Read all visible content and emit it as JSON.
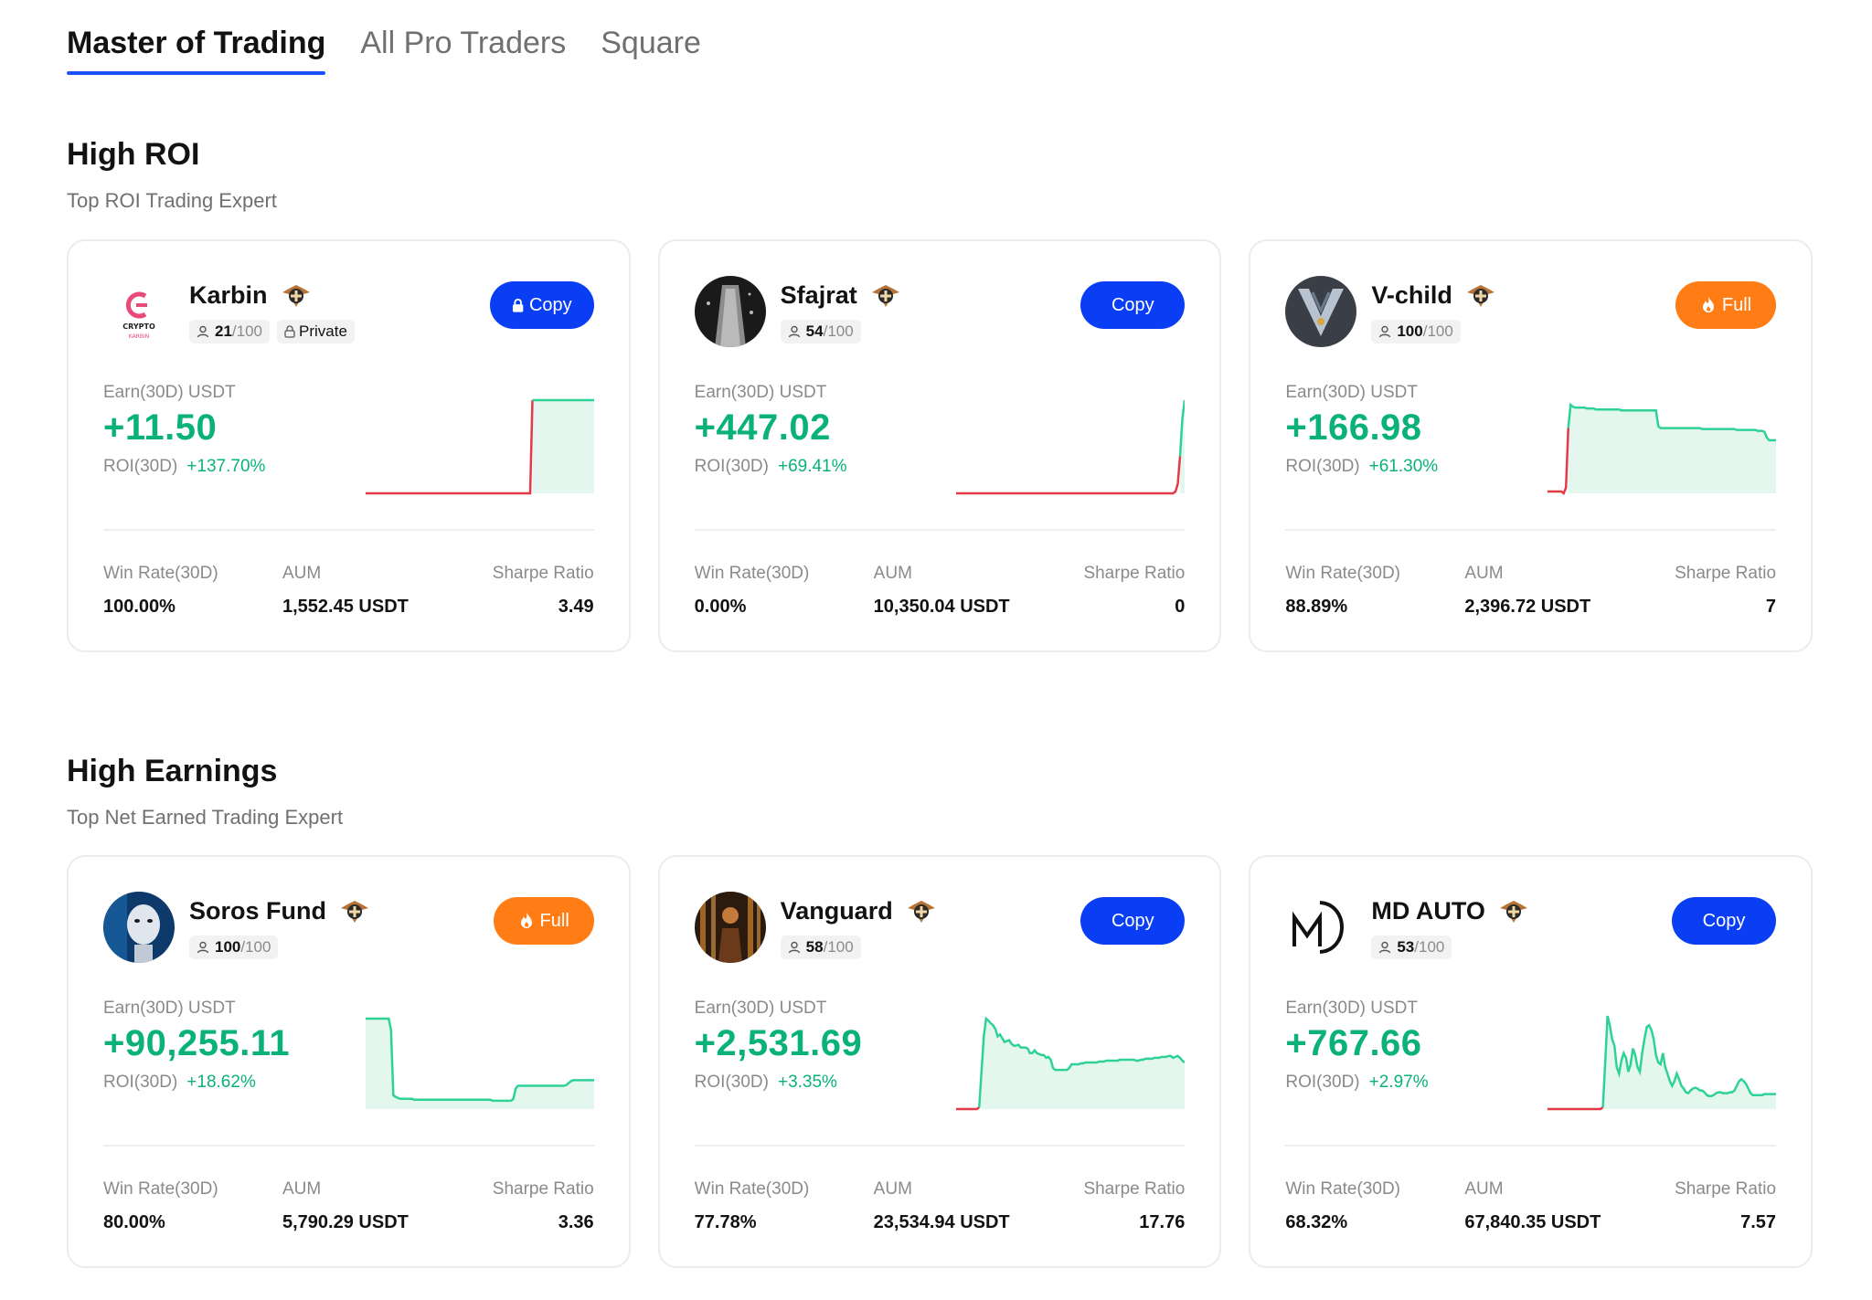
{
  "tabs": [
    {
      "label": "Master of Trading",
      "active": true
    },
    {
      "label": "All Pro Traders",
      "active": false
    },
    {
      "label": "Square",
      "active": false
    }
  ],
  "colors": {
    "accent": "#1f50ff",
    "copy_button": "#0a3ef5",
    "full_button": "#ff7d14",
    "positive": "#0ab27a",
    "negative": "#e63946"
  },
  "sections": [
    {
      "title": "High ROI",
      "subtitle": "Top ROI Trading Expert",
      "cards": [
        {
          "name": "Karbin",
          "avatar": "crypto-karbin-logo",
          "avatar_text": "CRYPTO",
          "followers": "21",
          "max_followers": "/100",
          "private_label": "Private",
          "button": {
            "type": "copy",
            "label": "Copy",
            "locked": true
          },
          "earn_label": "Earn(30D) USDT",
          "earn_value": "+11.50",
          "roi_label": "ROI(30D)",
          "roi_value": "+137.70%",
          "sparkline": [
            0,
            0,
            0,
            0,
            0,
            0,
            0,
            0,
            0,
            0,
            0,
            0,
            0,
            0,
            0,
            0,
            0,
            0,
            0,
            0,
            0,
            0,
            0,
            0,
            0,
            0,
            0,
            0,
            0,
            0,
            0,
            0,
            0,
            0,
            0,
            0,
            0,
            0,
            0,
            0,
            0,
            0,
            0,
            0,
            0,
            0,
            0,
            0,
            0,
            0,
            0,
            0,
            0,
            0,
            0,
            0,
            0,
            0,
            0,
            0,
            0,
            0,
            0,
            0,
            0,
            0,
            0,
            0,
            0,
            0,
            0,
            0,
            0,
            1,
            1,
            1,
            1,
            1,
            1,
            1,
            1,
            1,
            1,
            1,
            1,
            1,
            1,
            1,
            1,
            1,
            1,
            1,
            1,
            1,
            1,
            1,
            1,
            1,
            1,
            1,
            1
          ],
          "split_fraction": 0.73,
          "win_rate_label": "Win Rate(30D)",
          "win_rate": "100.00%",
          "aum_label": "AUM",
          "aum": "1,552.45 USDT",
          "sharpe_label": "Sharpe Ratio",
          "sharpe": "3.49"
        },
        {
          "name": "Sfajrat",
          "avatar": "sfajrat-photo",
          "followers": "54",
          "max_followers": "/100",
          "button": {
            "type": "copy",
            "label": "Copy",
            "locked": false
          },
          "earn_label": "Earn(30D) USDT",
          "earn_value": "+447.02",
          "roi_label": "ROI(30D)",
          "roi_value": "+69.41%",
          "sparkline": [
            0,
            0,
            0,
            0,
            0,
            0,
            0,
            0,
            0,
            0,
            0,
            0,
            0,
            0,
            0,
            0,
            0,
            0,
            0,
            0,
            0,
            0,
            0,
            0,
            0,
            0,
            0,
            0,
            0,
            0,
            0,
            0,
            0,
            0,
            0,
            0,
            0,
            0,
            0,
            0,
            0,
            0,
            0,
            0,
            0,
            0,
            0,
            0,
            0,
            0,
            0,
            0,
            0,
            0,
            0,
            0,
            0,
            0,
            0,
            0,
            0,
            0,
            0,
            0,
            0,
            0,
            0,
            0,
            0,
            0,
            0,
            0,
            0,
            0,
            0,
            0,
            0,
            0,
            0,
            0,
            0,
            0,
            0,
            0,
            0,
            0,
            0,
            0,
            0,
            0,
            0,
            0,
            0,
            0,
            0,
            0,
            0.02,
            0.1,
            0.4,
            0.8,
            1
          ],
          "split_fraction": 0.98,
          "win_rate_label": "Win Rate(30D)",
          "win_rate": "0.00%",
          "aum_label": "AUM",
          "aum": "10,350.04 USDT",
          "sharpe_label": "Sharpe Ratio",
          "sharpe": "0"
        },
        {
          "name": "V-child",
          "avatar": "v-child-emblem",
          "followers": "100",
          "max_followers": "/100",
          "button": {
            "type": "full",
            "label": "Full",
            "locked": false
          },
          "earn_label": "Earn(30D) USDT",
          "earn_value": "+166.98",
          "roi_label": "ROI(30D)",
          "roi_value": "+61.30%",
          "sparkline": [
            0.02,
            0.02,
            0.02,
            0.02,
            0.02,
            0.02,
            0.02,
            0.0,
            0.06,
            0.7,
            0.95,
            0.93,
            0.92,
            0.92,
            0.92,
            0.92,
            0.92,
            0.91,
            0.91,
            0.91,
            0.91,
            0.9,
            0.9,
            0.9,
            0.9,
            0.9,
            0.9,
            0.9,
            0.9,
            0.9,
            0.9,
            0.9,
            0.89,
            0.89,
            0.89,
            0.89,
            0.89,
            0.89,
            0.89,
            0.89,
            0.89,
            0.89,
            0.89,
            0.89,
            0.89,
            0.89,
            0.89,
            0.89,
            0.72,
            0.7,
            0.7,
            0.7,
            0.7,
            0.7,
            0.7,
            0.7,
            0.7,
            0.7,
            0.7,
            0.7,
            0.7,
            0.7,
            0.7,
            0.7,
            0.7,
            0.7,
            0.7,
            0.69,
            0.69,
            0.69,
            0.69,
            0.69,
            0.69,
            0.69,
            0.69,
            0.69,
            0.69,
            0.69,
            0.69,
            0.69,
            0.69,
            0.69,
            0.68,
            0.68,
            0.68,
            0.68,
            0.68,
            0.68,
            0.68,
            0.68,
            0.68,
            0.67,
            0.67,
            0.67,
            0.66,
            0.6,
            0.57,
            0.57,
            0.57,
            0.57
          ],
          "split_fraction": 0.09,
          "win_rate_label": "Win Rate(30D)",
          "win_rate": "88.89%",
          "aum_label": "AUM",
          "aum": "2,396.72 USDT",
          "sharpe_label": "Sharpe Ratio",
          "sharpe": "7"
        }
      ]
    },
    {
      "title": "High Earnings",
      "subtitle": "Top Net Earned Trading Expert",
      "cards": [
        {
          "name": "Soros Fund",
          "avatar": "soros-robot-photo",
          "followers": "100",
          "max_followers": "/100",
          "button": {
            "type": "full",
            "label": "Full",
            "locked": false
          },
          "earn_label": "Earn(30D) USDT",
          "earn_value": "+90,255.11",
          "roi_label": "ROI(30D)",
          "roi_value": "+18.62%",
          "sparkline": [
            0.97,
            0.97,
            0.97,
            0.97,
            0.97,
            0.97,
            0.97,
            0.97,
            0.97,
            0.97,
            0.97,
            0.85,
            0.15,
            0.13,
            0.12,
            0.11,
            0.11,
            0.11,
            0.11,
            0.11,
            0.11,
            0.1,
            0.1,
            0.1,
            0.1,
            0.1,
            0.1,
            0.1,
            0.1,
            0.1,
            0.1,
            0.1,
            0.1,
            0.1,
            0.1,
            0.1,
            0.1,
            0.1,
            0.1,
            0.1,
            0.1,
            0.1,
            0.1,
            0.1,
            0.1,
            0.1,
            0.1,
            0.1,
            0.1,
            0.1,
            0.1,
            0.1,
            0.1,
            0.1,
            0.1,
            0.09,
            0.09,
            0.09,
            0.09,
            0.09,
            0.09,
            0.09,
            0.09,
            0.09,
            0.11,
            0.22,
            0.25,
            0.25,
            0.25,
            0.25,
            0.25,
            0.25,
            0.25,
            0.25,
            0.25,
            0.25,
            0.25,
            0.25,
            0.25,
            0.25,
            0.25,
            0.25,
            0.25,
            0.25,
            0.25,
            0.25,
            0.25,
            0.26,
            0.28,
            0.3,
            0.31,
            0.31,
            0.31,
            0.31,
            0.31,
            0.31,
            0.31,
            0.31,
            0.31,
            0.31
          ],
          "split_fraction": 0.0,
          "win_rate_label": "Win Rate(30D)",
          "win_rate": "80.00%",
          "aum_label": "AUM",
          "aum": "5,790.29 USDT",
          "sharpe_label": "Sharpe Ratio",
          "sharpe": "3.36"
        },
        {
          "name": "Vanguard",
          "avatar": "vanguard-photo",
          "followers": "58",
          "max_followers": "/100",
          "button": {
            "type": "copy",
            "label": "Copy",
            "locked": false
          },
          "earn_label": "Earn(30D) USDT",
          "earn_value": "+2,531.69",
          "roi_label": "ROI(30D)",
          "roi_value": "+3.35%",
          "sparkline": [
            0.0,
            0.0,
            0.0,
            0.0,
            0.0,
            0.0,
            0.0,
            0.0,
            0.0,
            0.0,
            0.02,
            0.4,
            0.78,
            0.97,
            0.95,
            0.92,
            0.9,
            0.86,
            0.78,
            0.8,
            0.76,
            0.72,
            0.73,
            0.74,
            0.7,
            0.68,
            0.68,
            0.69,
            0.66,
            0.66,
            0.66,
            0.65,
            0.6,
            0.6,
            0.63,
            0.6,
            0.59,
            0.58,
            0.58,
            0.55,
            0.56,
            0.53,
            0.44,
            0.42,
            0.42,
            0.42,
            0.42,
            0.42,
            0.42,
            0.44,
            0.48,
            0.48,
            0.48,
            0.48,
            0.49,
            0.49,
            0.5,
            0.5,
            0.5,
            0.5,
            0.5,
            0.5,
            0.51,
            0.51,
            0.51,
            0.52,
            0.52,
            0.52,
            0.52,
            0.52,
            0.52,
            0.53,
            0.53,
            0.53,
            0.53,
            0.53,
            0.53,
            0.53,
            0.52,
            0.52,
            0.53,
            0.53,
            0.54,
            0.54,
            0.54,
            0.54,
            0.55,
            0.55,
            0.55,
            0.56,
            0.56,
            0.56,
            0.57,
            0.57,
            0.55,
            0.56,
            0.57,
            0.55,
            0.52,
            0.5
          ],
          "split_fraction": 0.1,
          "win_rate_label": "Win Rate(30D)",
          "win_rate": "77.78%",
          "aum_label": "AUM",
          "aum": "23,534.94 USDT",
          "sharpe_label": "Sharpe Ratio",
          "sharpe": "17.76"
        },
        {
          "name": "MD AUTO",
          "avatar": "md-auto-logo",
          "avatar_text": "MD",
          "followers": "53",
          "max_followers": "/100",
          "button": {
            "type": "copy",
            "label": "Copy",
            "locked": false
          },
          "earn_label": "Earn(30D) USDT",
          "earn_value": "+767.66",
          "roi_label": "ROI(30D)",
          "roi_value": "+2.97%",
          "sparkline": [
            0.0,
            0.0,
            0.0,
            0.0,
            0.0,
            0.0,
            0.0,
            0.0,
            0.0,
            0.0,
            0.0,
            0.0,
            0.0,
            0.0,
            0.0,
            0.0,
            0.0,
            0.0,
            0.0,
            0.0,
            0.0,
            0.0,
            0.0,
            0.0,
            0.02,
            0.5,
            1.0,
            0.9,
            0.75,
            0.68,
            0.45,
            0.38,
            0.52,
            0.6,
            0.55,
            0.4,
            0.48,
            0.65,
            0.58,
            0.45,
            0.4,
            0.6,
            0.75,
            0.88,
            0.9,
            0.85,
            0.75,
            0.58,
            0.5,
            0.48,
            0.6,
            0.45,
            0.38,
            0.3,
            0.25,
            0.3,
            0.38,
            0.32,
            0.25,
            0.22,
            0.18,
            0.17,
            0.2,
            0.22,
            0.23,
            0.22,
            0.2,
            0.2,
            0.18,
            0.15,
            0.14,
            0.14,
            0.15,
            0.17,
            0.18,
            0.18,
            0.17,
            0.17,
            0.17,
            0.18,
            0.18,
            0.2,
            0.25,
            0.3,
            0.32,
            0.3,
            0.27,
            0.22,
            0.17,
            0.15,
            0.15,
            0.15,
            0.15,
            0.15,
            0.16,
            0.16,
            0.16,
            0.16,
            0.16,
            0.16
          ],
          "split_fraction": 0.24,
          "win_rate_label": "Win Rate(30D)",
          "win_rate": "68.32%",
          "aum_label": "AUM",
          "aum": "67,840.35 USDT",
          "sharpe_label": "Sharpe Ratio",
          "sharpe": "7.57"
        }
      ]
    }
  ]
}
